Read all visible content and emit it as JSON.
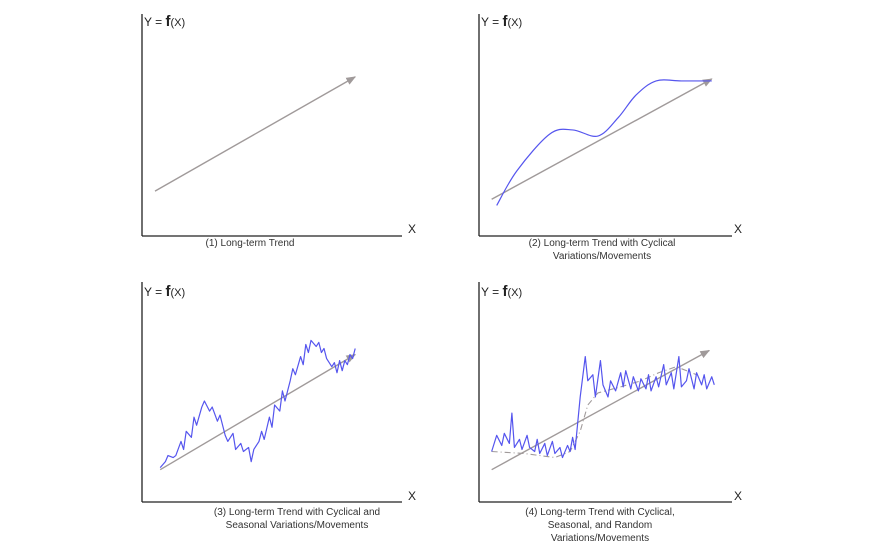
{
  "colors": {
    "trend": "#a09a9a",
    "series": "#5555ee",
    "axis": "#222222"
  },
  "labels": {
    "y_prefix": "Y = ",
    "y_f": "f",
    "y_x": "(X)",
    "x": "X"
  },
  "panels": [
    {
      "id": "p1",
      "caption": "(1)  Long-term Trend",
      "trend": {
        "start": [
          0.05,
          0.22
        ],
        "end": [
          0.82,
          0.78
        ]
      },
      "series": []
    },
    {
      "id": "p2",
      "caption": "(2)  Long-term Trend with Cyclical Variations/Movements",
      "trend": {
        "start": [
          0.05,
          0.18
        ],
        "end": [
          0.92,
          0.77
        ]
      },
      "series": [
        {
          "kind": "smooth",
          "points": [
            [
              0.07,
              0.15
            ],
            [
              0.15,
              0.32
            ],
            [
              0.28,
              0.5
            ],
            [
              0.37,
              0.52
            ],
            [
              0.47,
              0.49
            ],
            [
              0.55,
              0.58
            ],
            [
              0.62,
              0.69
            ],
            [
              0.7,
              0.76
            ],
            [
              0.8,
              0.76
            ],
            [
              0.92,
              0.76
            ]
          ]
        }
      ]
    },
    {
      "id": "p3",
      "caption": "(3)  Long-term Trend with Cyclical and Seasonal Variations/Movements",
      "trend": {
        "start": [
          0.07,
          0.16
        ],
        "end": [
          0.82,
          0.73
        ]
      },
      "series": [
        {
          "kind": "jagged",
          "points": [
            [
              0.07,
              0.17
            ],
            [
              0.09,
              0.2
            ],
            [
              0.1,
              0.23
            ],
            [
              0.12,
              0.22
            ],
            [
              0.13,
              0.23
            ],
            [
              0.15,
              0.3
            ],
            [
              0.16,
              0.26
            ],
            [
              0.17,
              0.35
            ],
            [
              0.19,
              0.32
            ],
            [
              0.2,
              0.42
            ],
            [
              0.21,
              0.38
            ],
            [
              0.23,
              0.47
            ],
            [
              0.24,
              0.5
            ],
            [
              0.26,
              0.45
            ],
            [
              0.27,
              0.47
            ],
            [
              0.29,
              0.4
            ],
            [
              0.3,
              0.43
            ],
            [
              0.32,
              0.33
            ],
            [
              0.33,
              0.3
            ],
            [
              0.35,
              0.34
            ],
            [
              0.36,
              0.26
            ],
            [
              0.38,
              0.29
            ],
            [
              0.39,
              0.25
            ],
            [
              0.41,
              0.27
            ],
            [
              0.42,
              0.2
            ],
            [
              0.43,
              0.26
            ],
            [
              0.45,
              0.3
            ],
            [
              0.46,
              0.35
            ],
            [
              0.47,
              0.31
            ],
            [
              0.49,
              0.42
            ],
            [
              0.5,
              0.37
            ],
            [
              0.51,
              0.48
            ],
            [
              0.53,
              0.45
            ],
            [
              0.54,
              0.55
            ],
            [
              0.55,
              0.5
            ],
            [
              0.57,
              0.6
            ],
            [
              0.58,
              0.66
            ],
            [
              0.59,
              0.63
            ],
            [
              0.61,
              0.72
            ],
            [
              0.62,
              0.68
            ],
            [
              0.63,
              0.78
            ],
            [
              0.64,
              0.74
            ],
            [
              0.65,
              0.8
            ],
            [
              0.67,
              0.77
            ],
            [
              0.68,
              0.79
            ],
            [
              0.69,
              0.74
            ],
            [
              0.7,
              0.76
            ],
            [
              0.71,
              0.71
            ],
            [
              0.73,
              0.67
            ],
            [
              0.74,
              0.69
            ],
            [
              0.75,
              0.64
            ],
            [
              0.76,
              0.7
            ],
            [
              0.77,
              0.65
            ],
            [
              0.78,
              0.7
            ],
            [
              0.79,
              0.68
            ],
            [
              0.8,
              0.73
            ],
            [
              0.81,
              0.71
            ],
            [
              0.82,
              0.76
            ]
          ]
        }
      ]
    },
    {
      "id": "p4",
      "caption": "(4)  Long-term Trend with Cyclical, Seasonal, and Random Variations/Movements",
      "trend": {
        "start": [
          0.05,
          0.16
        ],
        "end": [
          0.91,
          0.75
        ]
      },
      "series": [
        {
          "kind": "dashdot",
          "points": [
            [
              0.05,
              0.25
            ],
            [
              0.18,
              0.24
            ],
            [
              0.3,
              0.22
            ],
            [
              0.36,
              0.25
            ],
            [
              0.4,
              0.35
            ],
            [
              0.43,
              0.48
            ],
            [
              0.47,
              0.54
            ],
            [
              0.56,
              0.57
            ],
            [
              0.64,
              0.6
            ],
            [
              0.71,
              0.64
            ],
            [
              0.78,
              0.67
            ],
            [
              0.86,
              0.63
            ]
          ]
        },
        {
          "kind": "jagged",
          "points": [
            [
              0.05,
              0.25
            ],
            [
              0.07,
              0.33
            ],
            [
              0.09,
              0.28
            ],
            [
              0.1,
              0.34
            ],
            [
              0.12,
              0.29
            ],
            [
              0.13,
              0.44
            ],
            [
              0.14,
              0.27
            ],
            [
              0.16,
              0.31
            ],
            [
              0.17,
              0.26
            ],
            [
              0.19,
              0.33
            ],
            [
              0.2,
              0.27
            ],
            [
              0.22,
              0.25
            ],
            [
              0.23,
              0.31
            ],
            [
              0.24,
              0.24
            ],
            [
              0.26,
              0.29
            ],
            [
              0.27,
              0.23
            ],
            [
              0.29,
              0.3
            ],
            [
              0.3,
              0.24
            ],
            [
              0.32,
              0.27
            ],
            [
              0.33,
              0.22
            ],
            [
              0.35,
              0.28
            ],
            [
              0.36,
              0.25
            ],
            [
              0.37,
              0.32
            ],
            [
              0.38,
              0.26
            ],
            [
              0.4,
              0.52
            ],
            [
              0.42,
              0.72
            ],
            [
              0.43,
              0.6
            ],
            [
              0.45,
              0.63
            ],
            [
              0.46,
              0.52
            ],
            [
              0.48,
              0.7
            ],
            [
              0.49,
              0.58
            ],
            [
              0.51,
              0.52
            ],
            [
              0.52,
              0.6
            ],
            [
              0.54,
              0.55
            ],
            [
              0.56,
              0.64
            ],
            [
              0.57,
              0.57
            ],
            [
              0.58,
              0.65
            ],
            [
              0.6,
              0.56
            ],
            [
              0.61,
              0.62
            ],
            [
              0.63,
              0.55
            ],
            [
              0.64,
              0.61
            ],
            [
              0.66,
              0.56
            ],
            [
              0.67,
              0.63
            ],
            [
              0.68,
              0.55
            ],
            [
              0.7,
              0.62
            ],
            [
              0.71,
              0.57
            ],
            [
              0.73,
              0.68
            ],
            [
              0.74,
              0.58
            ],
            [
              0.76,
              0.64
            ],
            [
              0.77,
              0.56
            ],
            [
              0.79,
              0.72
            ],
            [
              0.8,
              0.57
            ],
            [
              0.82,
              0.6
            ],
            [
              0.83,
              0.66
            ],
            [
              0.85,
              0.56
            ],
            [
              0.86,
              0.64
            ],
            [
              0.88,
              0.58
            ],
            [
              0.89,
              0.63
            ],
            [
              0.9,
              0.56
            ],
            [
              0.92,
              0.62
            ],
            [
              0.93,
              0.58
            ]
          ]
        }
      ]
    }
  ]
}
